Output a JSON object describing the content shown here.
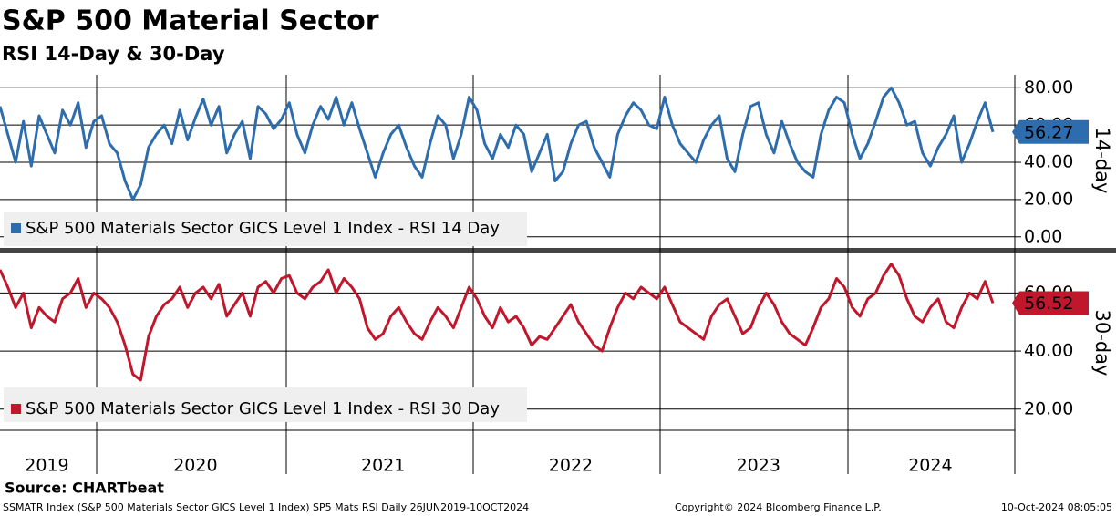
{
  "chart_data": [
    {
      "type": "line",
      "title": "S&P 500 Material Sector",
      "subtitle": "RSI 14-Day & 30-Day",
      "y_label": "14-day",
      "ylim": [
        -5,
        87
      ],
      "yticks": [
        {
          "value": 0,
          "label": "0.00"
        },
        {
          "value": 20,
          "label": "20.00"
        },
        {
          "value": 40,
          "label": "40.00"
        },
        {
          "value": 60,
          "label": "60.00"
        },
        {
          "value": 80,
          "label": "80.00"
        }
      ],
      "grid": true,
      "series": [
        {
          "name": "S&P 500 Materials Sector GICS Level 1 Index - RSI 14 Day",
          "color": "#2e6dad",
          "values": [
            70,
            55,
            40,
            62,
            38,
            65,
            55,
            45,
            68,
            60,
            72,
            48,
            62,
            65,
            50,
            45,
            30,
            20,
            28,
            48,
            55,
            60,
            50,
            68,
            52,
            64,
            74,
            60,
            70,
            45,
            55,
            62,
            42,
            70,
            66,
            58,
            63,
            72,
            55,
            45,
            60,
            70,
            63,
            75,
            60,
            72,
            58,
            45,
            32,
            45,
            55,
            60,
            48,
            38,
            32,
            50,
            65,
            60,
            42,
            55,
            75,
            68,
            50,
            42,
            55,
            48,
            60,
            55,
            35,
            45,
            55,
            30,
            35,
            50,
            60,
            62,
            48,
            40,
            32,
            55,
            65,
            72,
            68,
            60,
            58,
            75,
            60,
            50,
            45,
            40,
            52,
            60,
            65,
            42,
            35,
            55,
            70,
            72,
            55,
            45,
            62,
            50,
            40,
            35,
            32,
            55,
            68,
            75,
            72,
            55,
            42,
            50,
            62,
            75,
            80,
            72,
            60,
            62,
            45,
            38,
            48,
            55,
            65,
            40,
            50,
            62,
            72,
            56.27
          ]
        }
      ]
    },
    {
      "type": "line",
      "y_label": "30-day",
      "ylim": [
        12.7,
        73
      ],
      "yticks": [
        {
          "value": 20,
          "label": "20.00"
        },
        {
          "value": 40,
          "label": "40.00"
        },
        {
          "value": 60,
          "label": "60.00"
        }
      ],
      "grid": true,
      "categories": [
        null,
        null,
        null,
        null,
        null,
        null,
        "2019",
        null,
        null,
        null,
        null,
        null,
        null,
        null,
        null,
        null,
        null,
        null,
        null,
        null,
        null,
        null,
        null,
        null,
        null,
        "2020",
        null,
        null,
        null,
        null,
        null,
        null,
        null,
        null,
        null,
        null,
        null,
        null,
        null,
        null,
        null,
        null,
        null,
        null,
        null,
        null,
        null,
        null,
        null,
        "2021",
        null,
        null,
        null,
        null,
        null,
        null,
        null,
        null,
        null,
        null,
        null,
        null,
        null,
        null,
        null,
        null,
        null,
        null,
        null,
        null,
        null,
        null,
        null,
        "2022",
        null,
        null,
        null,
        null,
        null,
        null,
        null,
        null,
        null,
        null,
        null,
        null,
        null,
        null,
        null,
        null,
        null,
        null,
        null,
        null,
        null,
        null,
        null,
        "2023",
        null,
        null,
        null,
        null,
        null,
        null,
        null,
        null,
        null,
        null,
        null,
        null,
        null,
        null,
        null,
        null,
        null,
        null,
        null,
        null,
        null,
        "2024",
        null,
        null,
        null,
        null,
        null,
        null,
        null,
        null
      ],
      "series": [
        {
          "name": "S&P 500 Materials Sector GICS Level 1 Index - RSI 30 Day",
          "color": "#c0172c",
          "values": [
            68,
            62,
            55,
            60,
            48,
            55,
            52,
            50,
            58,
            60,
            65,
            55,
            60,
            58,
            55,
            50,
            42,
            32,
            30,
            45,
            52,
            56,
            58,
            62,
            55,
            60,
            62,
            58,
            63,
            52,
            56,
            60,
            52,
            62,
            64,
            60,
            65,
            66,
            60,
            58,
            62,
            64,
            68,
            60,
            65,
            62,
            58,
            48,
            44,
            46,
            52,
            55,
            50,
            46,
            44,
            50,
            55,
            52,
            48,
            55,
            62,
            58,
            52,
            48,
            55,
            50,
            52,
            48,
            42,
            45,
            44,
            48,
            52,
            56,
            50,
            46,
            42,
            40,
            48,
            55,
            60,
            58,
            62,
            60,
            58,
            62,
            56,
            50,
            48,
            46,
            44,
            52,
            56,
            58,
            52,
            46,
            48,
            55,
            60,
            56,
            50,
            46,
            44,
            42,
            48,
            55,
            58,
            65,
            62,
            55,
            52,
            58,
            60,
            66,
            70,
            66,
            58,
            52,
            50,
            55,
            58,
            50,
            48,
            55,
            60,
            58,
            64,
            56.52
          ]
        }
      ]
    }
  ],
  "source": "Source: CHARTbeat",
  "footer": {
    "left": "SSMATR Index (S&P 500 Materials Sector GICS Level 1 Index) SP5 Mats RSI  Daily 26JUN2019-10OCT2024",
    "center": "Copyright© 2024 Bloomberg Finance L.P.",
    "right": "10-Oct-2024 08:05:05"
  }
}
